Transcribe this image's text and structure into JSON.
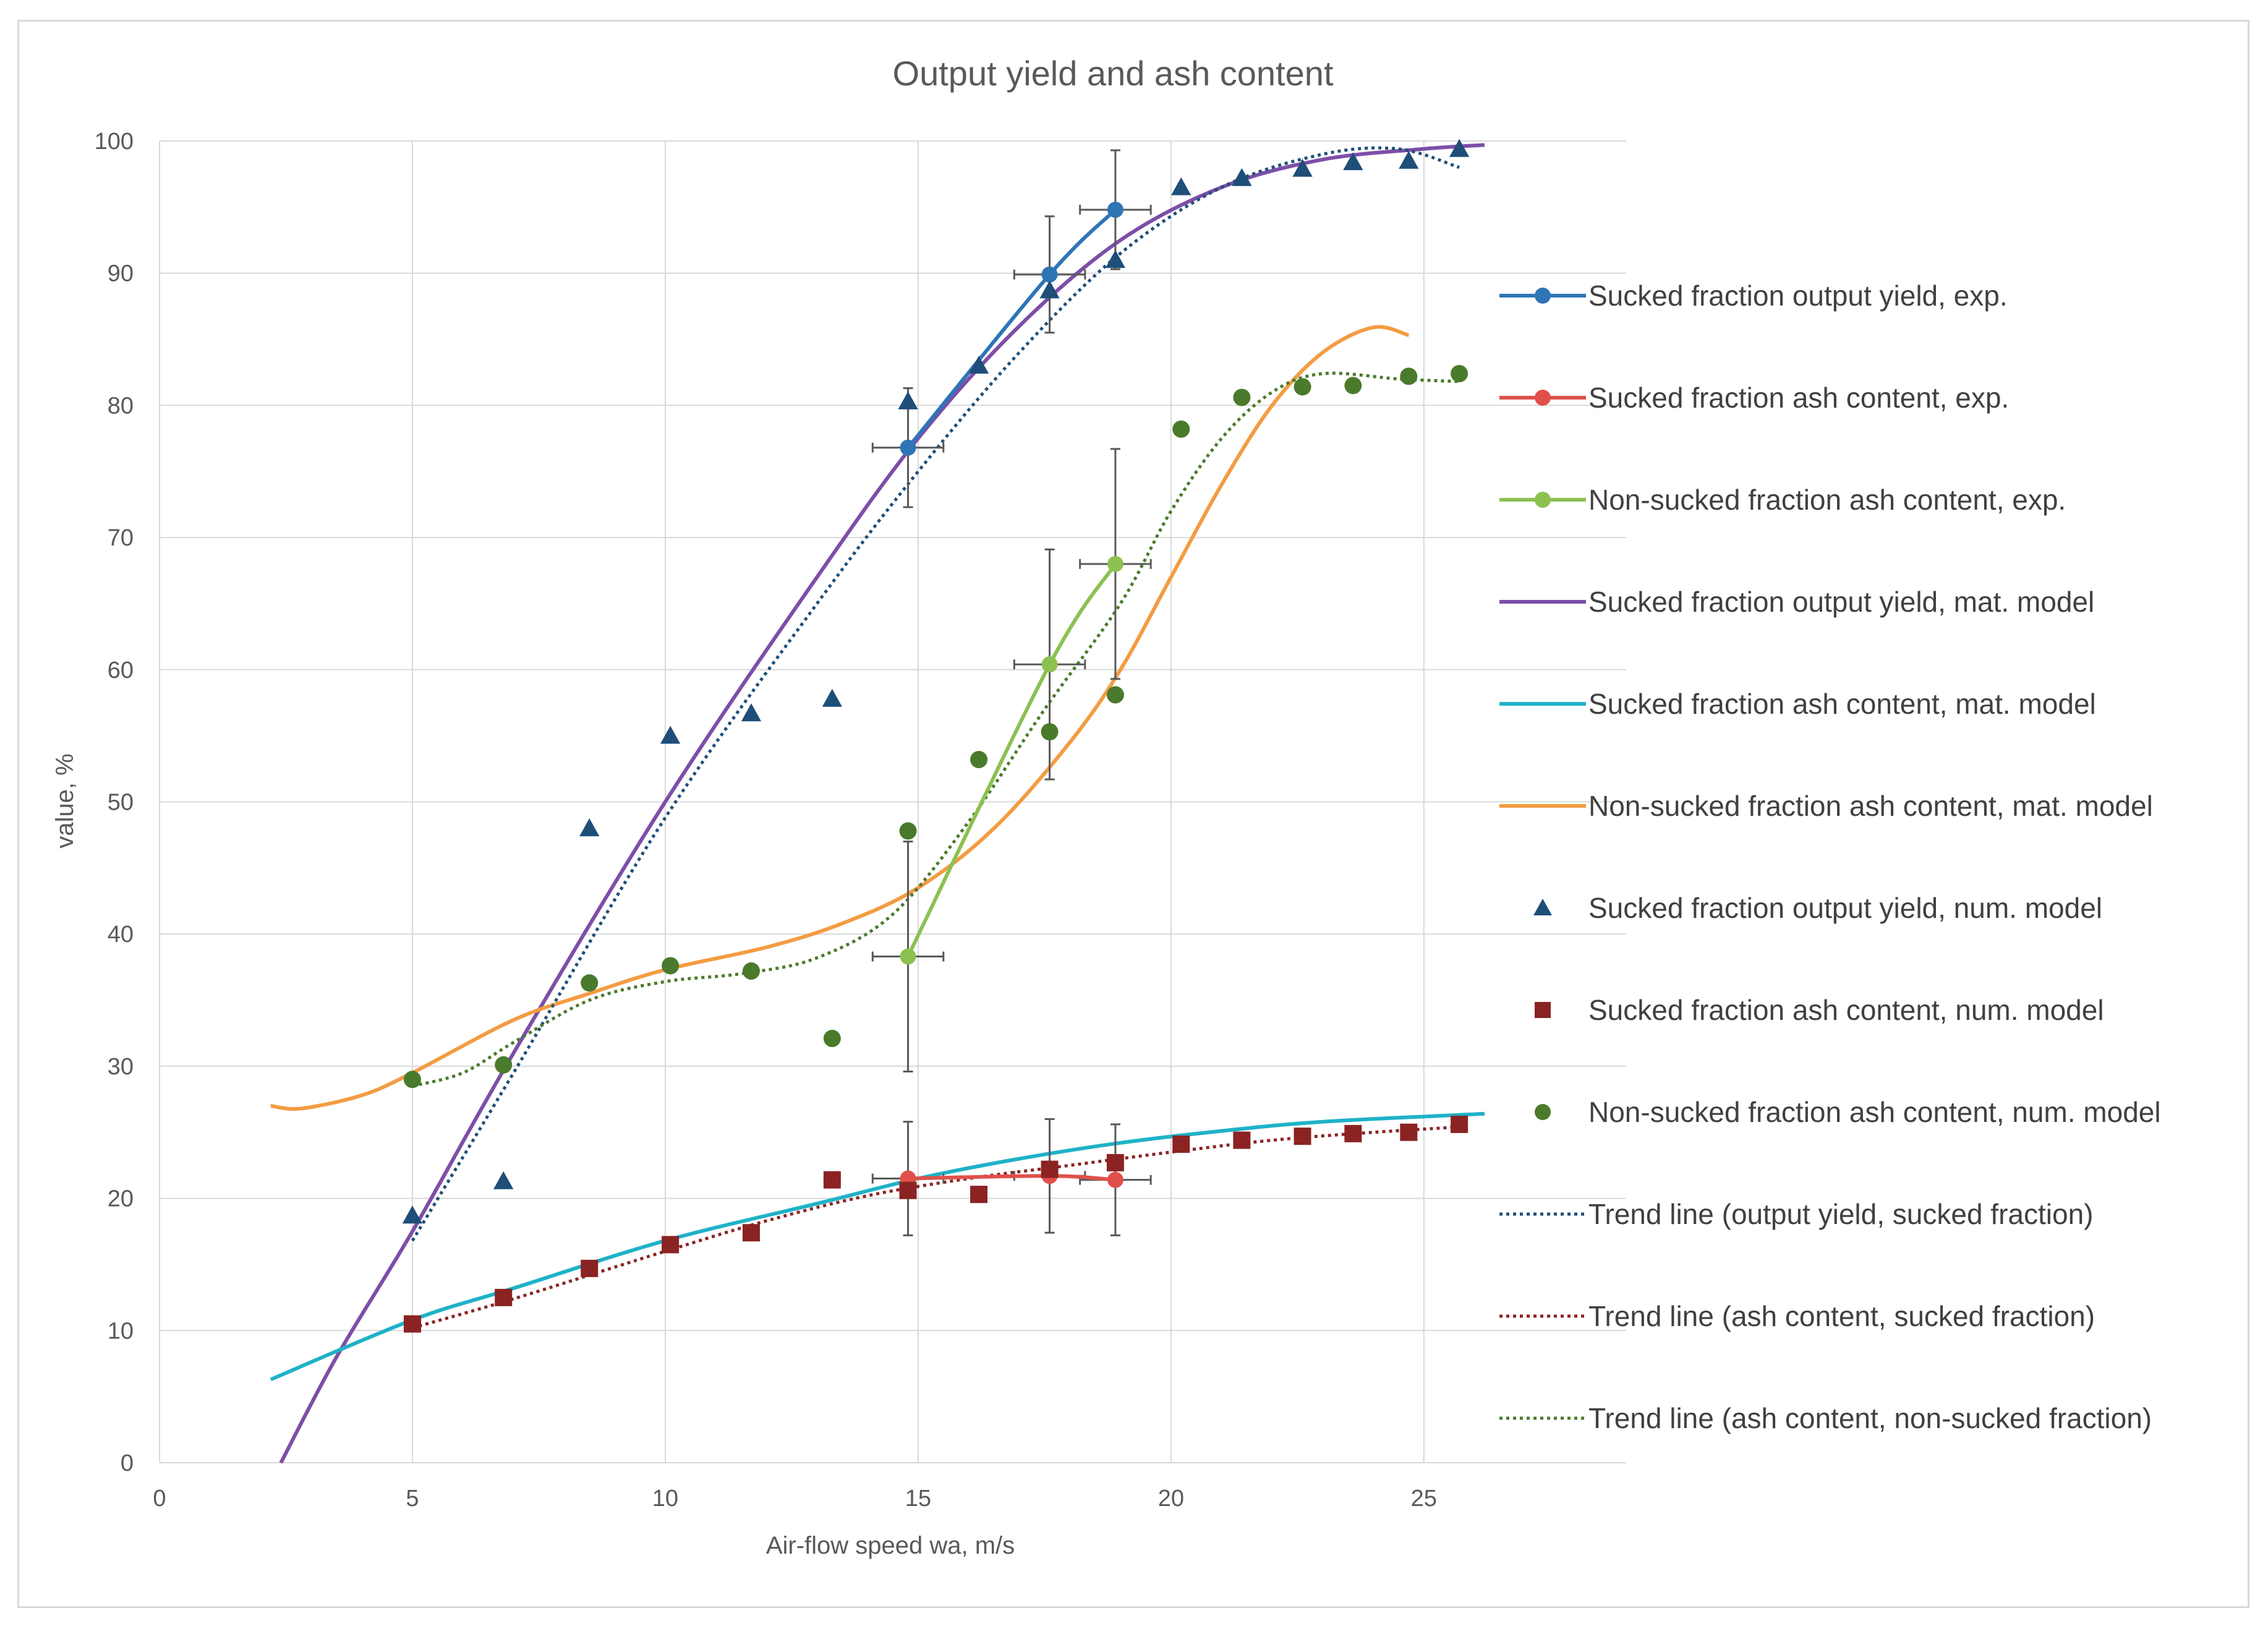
{
  "chart_data": {
    "type": "line",
    "title": "Output yield and ash content",
    "xlabel": "Air-flow speed wa, m/s",
    "ylabel": "value, %",
    "xlim": [
      0,
      29
    ],
    "ylim": [
      0,
      100
    ],
    "x_ticks": [
      0,
      5,
      10,
      15,
      20,
      25
    ],
    "y_ticks": [
      0,
      10,
      20,
      30,
      40,
      50,
      60,
      70,
      80,
      90,
      100
    ],
    "grid": "vertical and horizontal major gridlines",
    "legend_position": "right",
    "colors": {
      "exp_yield": "#2e75b6",
      "exp_ash_sucked": "#e0504a",
      "exp_ash_nonsucked": "#8cc152",
      "model_yield": "#7d4ea8",
      "model_ash_sucked": "#1fb2c8",
      "model_ash_nonsucked": "#f39c42",
      "num_yield": "#1f4e79",
      "num_ash_sucked": "#8b2323",
      "num_ash_nonsucked": "#4a7a2b",
      "trend_yield": "#1f4e79",
      "trend_ash_sucked": "#8b2323",
      "trend_ash_nonsucked": "#4a7a2b",
      "error_bar": "#595959",
      "grid": "#d9d9d9"
    },
    "series": [
      {
        "name": "Sucked fraction output yield, exp.",
        "kind": "line-marker",
        "marker": "circle",
        "color_key": "exp_yield",
        "points": [
          [
            14.8,
            76.8
          ],
          [
            17.6,
            89.9
          ],
          [
            18.9,
            94.8
          ]
        ],
        "x_err": [
          0.7,
          0.7,
          0.7
        ],
        "y_err": [
          4.5,
          4.4,
          4.5
        ]
      },
      {
        "name": "Sucked fraction ash content, exp.",
        "kind": "line-marker",
        "marker": "circle",
        "color_key": "exp_ash_sucked",
        "points": [
          [
            14.8,
            21.5
          ],
          [
            17.6,
            21.7
          ],
          [
            18.9,
            21.4
          ]
        ],
        "x_err": [
          0.7,
          0.7,
          0.7
        ],
        "y_err": [
          4.3,
          4.3,
          4.2
        ]
      },
      {
        "name": "Non-sucked fraction ash content, exp.",
        "kind": "line-marker",
        "marker": "circle",
        "color_key": "exp_ash_nonsucked",
        "points": [
          [
            14.8,
            38.3
          ],
          [
            17.6,
            60.4
          ],
          [
            18.9,
            68.0
          ]
        ],
        "x_err": [
          0.7,
          0.7,
          0.7
        ],
        "y_err": [
          8.7,
          8.7,
          8.7
        ]
      },
      {
        "name": "Sucked fraction output yield, mat. model",
        "kind": "line",
        "color_key": "model_yield",
        "points": [
          [
            2.4,
            0
          ],
          [
            3.5,
            8
          ],
          [
            5.0,
            17.5
          ],
          [
            7.0,
            31
          ],
          [
            10.0,
            50
          ],
          [
            13.0,
            67
          ],
          [
            15.0,
            77.5
          ],
          [
            17.0,
            86
          ],
          [
            19.0,
            92.5
          ],
          [
            21.0,
            96.5
          ],
          [
            23.0,
            98.6
          ],
          [
            25.0,
            99.4
          ],
          [
            26.2,
            99.7
          ]
        ]
      },
      {
        "name": "Sucked fraction ash content, mat. model",
        "kind": "line",
        "color_key": "model_ash_sucked",
        "points": [
          [
            2.2,
            6.3
          ],
          [
            5.0,
            10.8
          ],
          [
            7.0,
            13.2
          ],
          [
            10.0,
            16.8
          ],
          [
            13.0,
            19.6
          ],
          [
            15.0,
            21.5
          ],
          [
            17.0,
            23.0
          ],
          [
            19.0,
            24.2
          ],
          [
            21.0,
            25.1
          ],
          [
            23.0,
            25.8
          ],
          [
            26.2,
            26.4
          ]
        ]
      },
      {
        "name": "Non-sucked fraction ash content, mat. model",
        "kind": "line",
        "color_key": "model_ash_nonsucked",
        "points": [
          [
            2.2,
            27.0
          ],
          [
            2.8,
            26.8
          ],
          [
            4.0,
            27.8
          ],
          [
            5.0,
            29.5
          ],
          [
            7.0,
            33.5
          ],
          [
            8.5,
            35.5
          ],
          [
            10.0,
            37.3
          ],
          [
            12.0,
            39.0
          ],
          [
            13.5,
            40.8
          ],
          [
            15.0,
            43.5
          ],
          [
            16.5,
            48.0
          ],
          [
            18.0,
            54.5
          ],
          [
            19.0,
            60.0
          ],
          [
            20.0,
            67.0
          ],
          [
            21.0,
            74.0
          ],
          [
            22.0,
            80.0
          ],
          [
            23.0,
            84.0
          ],
          [
            24.0,
            85.9
          ],
          [
            24.7,
            85.3
          ]
        ]
      },
      {
        "name": "Sucked fraction output yield, num. model",
        "kind": "scatter",
        "marker": "triangle",
        "color_key": "num_yield",
        "points": [
          [
            5.0,
            18.7
          ],
          [
            6.8,
            21.3
          ],
          [
            8.5,
            48.0
          ],
          [
            10.1,
            55.0
          ],
          [
            11.7,
            56.7
          ],
          [
            13.3,
            57.8
          ],
          [
            14.8,
            80.3
          ],
          [
            16.2,
            83.0
          ],
          [
            17.6,
            88.7
          ],
          [
            18.9,
            91.0
          ],
          [
            20.2,
            96.5
          ],
          [
            21.4,
            97.2
          ],
          [
            22.6,
            97.9
          ],
          [
            23.6,
            98.4
          ],
          [
            24.7,
            98.5
          ],
          [
            25.7,
            99.4
          ]
        ]
      },
      {
        "name": "Sucked fraction ash content, num. model",
        "kind": "scatter",
        "marker": "square",
        "color_key": "num_ash_sucked",
        "points": [
          [
            5.0,
            10.5
          ],
          [
            6.8,
            12.5
          ],
          [
            8.5,
            14.7
          ],
          [
            10.1,
            16.5
          ],
          [
            11.7,
            17.4
          ],
          [
            13.3,
            21.4
          ],
          [
            14.8,
            20.6
          ],
          [
            16.2,
            20.3
          ],
          [
            17.6,
            22.2
          ],
          [
            18.9,
            22.7
          ],
          [
            20.2,
            24.1
          ],
          [
            21.4,
            24.4
          ],
          [
            22.6,
            24.7
          ],
          [
            23.6,
            24.9
          ],
          [
            24.7,
            25.0
          ],
          [
            25.7,
            25.6
          ]
        ]
      },
      {
        "name": "Non-sucked fraction ash content, num. model",
        "kind": "scatter",
        "marker": "circle",
        "color_key": "num_ash_nonsucked",
        "points": [
          [
            5.0,
            29.0
          ],
          [
            6.8,
            30.1
          ],
          [
            8.5,
            36.3
          ],
          [
            10.1,
            37.6
          ],
          [
            11.7,
            37.2
          ],
          [
            13.3,
            32.1
          ],
          [
            14.8,
            47.8
          ],
          [
            16.2,
            53.2
          ],
          [
            17.6,
            55.3
          ],
          [
            18.9,
            58.1
          ],
          [
            20.2,
            78.2
          ],
          [
            21.4,
            80.6
          ],
          [
            22.6,
            81.4
          ],
          [
            23.6,
            81.5
          ],
          [
            24.7,
            82.2
          ],
          [
            25.7,
            82.4
          ]
        ]
      },
      {
        "name": "Trend line (output yield, sucked fraction)",
        "kind": "dotted",
        "color_key": "trend_yield",
        "points": [
          [
            5.0,
            16.8
          ],
          [
            7.0,
            29.5
          ],
          [
            10.0,
            48.8
          ],
          [
            13.0,
            65.0
          ],
          [
            15.0,
            75.0
          ],
          [
            17.0,
            84.0
          ],
          [
            19.0,
            91.5
          ],
          [
            21.0,
            96.5
          ],
          [
            23.0,
            99.0
          ],
          [
            24.5,
            99.4
          ],
          [
            25.7,
            98.0
          ]
        ]
      },
      {
        "name": "Trend line (ash content, sucked fraction)",
        "kind": "dotted",
        "color_key": "trend_ash_sucked",
        "points": [
          [
            5.0,
            10.2
          ],
          [
            7.0,
            12.4
          ],
          [
            10.0,
            16.0
          ],
          [
            12.0,
            18.3
          ],
          [
            14.0,
            20.2
          ],
          [
            16.0,
            21.5
          ],
          [
            18.0,
            22.5
          ],
          [
            20.0,
            23.5
          ],
          [
            22.0,
            24.4
          ],
          [
            24.0,
            25.0
          ],
          [
            25.7,
            25.4
          ]
        ]
      },
      {
        "name": "Trend line (ash content, non-sucked fraction)",
        "kind": "dotted",
        "color_key": "trend_ash_nonsucked",
        "points": [
          [
            5.0,
            28.5
          ],
          [
            6.0,
            29.5
          ],
          [
            7.0,
            31.8
          ],
          [
            8.5,
            35.0
          ],
          [
            10.0,
            36.4
          ],
          [
            11.5,
            37.0
          ],
          [
            13.0,
            38.2
          ],
          [
            14.5,
            41.5
          ],
          [
            16.0,
            48.5
          ],
          [
            17.5,
            57.0
          ],
          [
            19.0,
            65.0
          ],
          [
            20.0,
            72.0
          ],
          [
            21.0,
            77.5
          ],
          [
            22.0,
            81.0
          ],
          [
            23.0,
            82.4
          ],
          [
            24.5,
            82.0
          ],
          [
            25.7,
            81.8
          ]
        ]
      }
    ]
  }
}
